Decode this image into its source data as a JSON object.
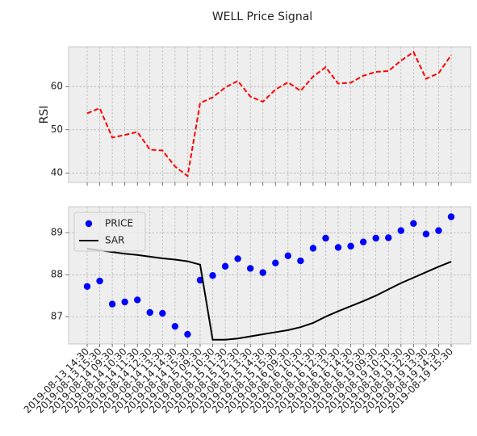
{
  "title": "WELL Price Signal",
  "chart_data": [
    {
      "type": "line",
      "ylabel": "RSI",
      "color": "#ff0000",
      "dashed": true,
      "grid": true,
      "values": [
        53.8,
        55,
        48.2,
        48.8,
        49.5,
        45.4,
        45.2,
        41.5,
        39.3,
        56.2,
        57.5,
        59.8,
        61.3,
        57.7,
        56.5,
        59.3,
        61,
        59,
        62.3,
        64.5,
        60.7,
        60.9,
        62.5,
        63.4,
        63.6,
        66,
        68,
        61.8,
        63.1,
        67.3
      ],
      "ylim": [
        37.8,
        69.2
      ],
      "yticks": [
        40,
        50,
        60
      ]
    },
    {
      "type": "line",
      "grid": true,
      "legend": "upper left",
      "categories": [
        "2019-08-13 14:30",
        "2019-08-13 15:30",
        "2019-08-14 09:30",
        "2019-08-14 10:30",
        "2019-08-14 11:30",
        "2019-08-14 12:30",
        "2019-08-14 13:30",
        "2019-08-14 14:30",
        "2019-08-14 15:30",
        "2019-08-15 09:30",
        "2019-08-15 10:30",
        "2019-08-15 11:30",
        "2019-08-15 12:30",
        "2019-08-15 13:30",
        "2019-08-15 14:30",
        "2019-08-15 15:30",
        "2019-08-16 09:30",
        "2019-08-16 10:30",
        "2019-08-16 11:30",
        "2019-08-16 12:30",
        "2019-08-16 13:30",
        "2019-08-16 14:30",
        "2019-08-16 15:30",
        "2019-08-19 09:30",
        "2019-08-19 10:30",
        "2019-08-19 11:30",
        "2019-08-19 12:30",
        "2019-08-19 13:30",
        "2019-08-19 14:30",
        "2019-08-19 15:30"
      ],
      "series": [
        {
          "name": "PRICE",
          "kind": "scatter",
          "color": "#0000ff",
          "values": [
            87.72,
            87.85,
            87.3,
            87.35,
            87.4,
            87.1,
            87.08,
            86.77,
            86.58,
            87.87,
            87.98,
            88.2,
            88.38,
            88.15,
            88.05,
            88.28,
            88.45,
            88.33,
            88.63,
            88.87,
            88.65,
            88.68,
            88.78,
            88.87,
            88.88,
            89.05,
            89.22,
            88.97,
            89.05,
            89.38
          ]
        },
        {
          "name": "SAR",
          "kind": "line",
          "color": "#000000",
          "values": [
            88.62,
            88.58,
            88.54,
            88.5,
            88.47,
            88.43,
            88.39,
            88.36,
            88.32,
            88.24,
            86.45,
            86.45,
            86.48,
            86.53,
            86.58,
            86.63,
            86.68,
            86.75,
            86.85,
            87.0,
            87.13,
            87.25,
            87.37,
            87.5,
            87.65,
            87.8,
            87.93,
            88.06,
            88.19,
            88.31
          ]
        }
      ],
      "ylim": [
        86.35,
        89.62
      ],
      "yticks": [
        87,
        88,
        89
      ]
    }
  ]
}
